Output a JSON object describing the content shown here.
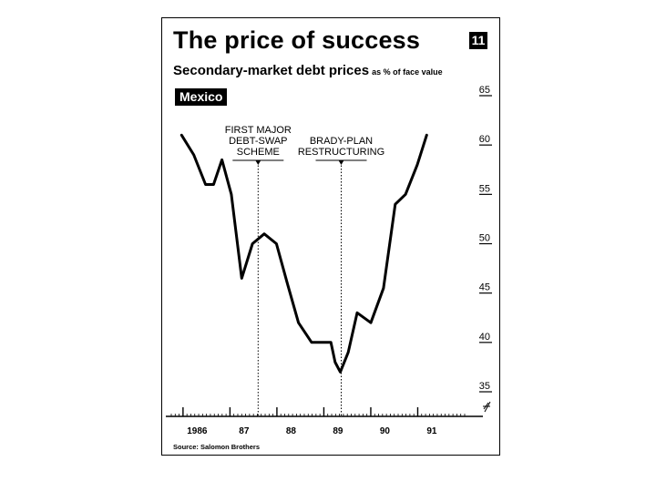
{
  "title": "The price of success",
  "chart_number": "11",
  "subtitle": "Secondary-market debt prices",
  "subtitle_unit": "as % of face value",
  "country_label": "Mexico",
  "source": "Source: Salomon Brothers",
  "chart_data": {
    "type": "line",
    "title": "The price of success",
    "subtitle": "Secondary-market debt prices as % of face value",
    "ylim": [
      35,
      65
    ],
    "yticks": [
      35,
      40,
      45,
      50,
      55,
      60,
      65
    ],
    "xlim": [
      1985.75,
      1992.0
    ],
    "xtick_labels": [
      "1986",
      "87",
      "88",
      "89",
      "90",
      "91"
    ],
    "xtick_positions": [
      1986.3,
      1987.3,
      1988.3,
      1989.3,
      1990.3,
      1991.3
    ],
    "series": [
      {
        "name": "Mexico",
        "x": [
          1985.97,
          1986.23,
          1986.48,
          1986.65,
          1986.83,
          1987.03,
          1987.25,
          1987.48,
          1987.73,
          1987.99,
          1988.22,
          1988.46,
          1988.74,
          1988.98,
          1989.15,
          1989.24,
          1989.35,
          1989.52,
          1989.71,
          1990.0,
          1990.27,
          1990.52,
          1990.74,
          1990.99,
          1991.19
        ],
        "y": [
          61,
          59,
          56,
          56,
          58.5,
          55,
          46.5,
          50,
          51,
          50,
          46,
          42,
          40,
          40,
          40,
          38,
          37,
          39,
          43,
          42,
          45.5,
          54,
          55,
          58,
          61
        ]
      }
    ],
    "annotations": [
      {
        "lines": [
          "FIRST MAJOR",
          "DEBT-SWAP",
          "SCHEME"
        ],
        "x": 1987.6
      },
      {
        "lines": [
          "BRADY-PLAN",
          "RESTRUCTURING"
        ],
        "x": 1989.37
      }
    ],
    "grid": false,
    "legend": "none"
  }
}
